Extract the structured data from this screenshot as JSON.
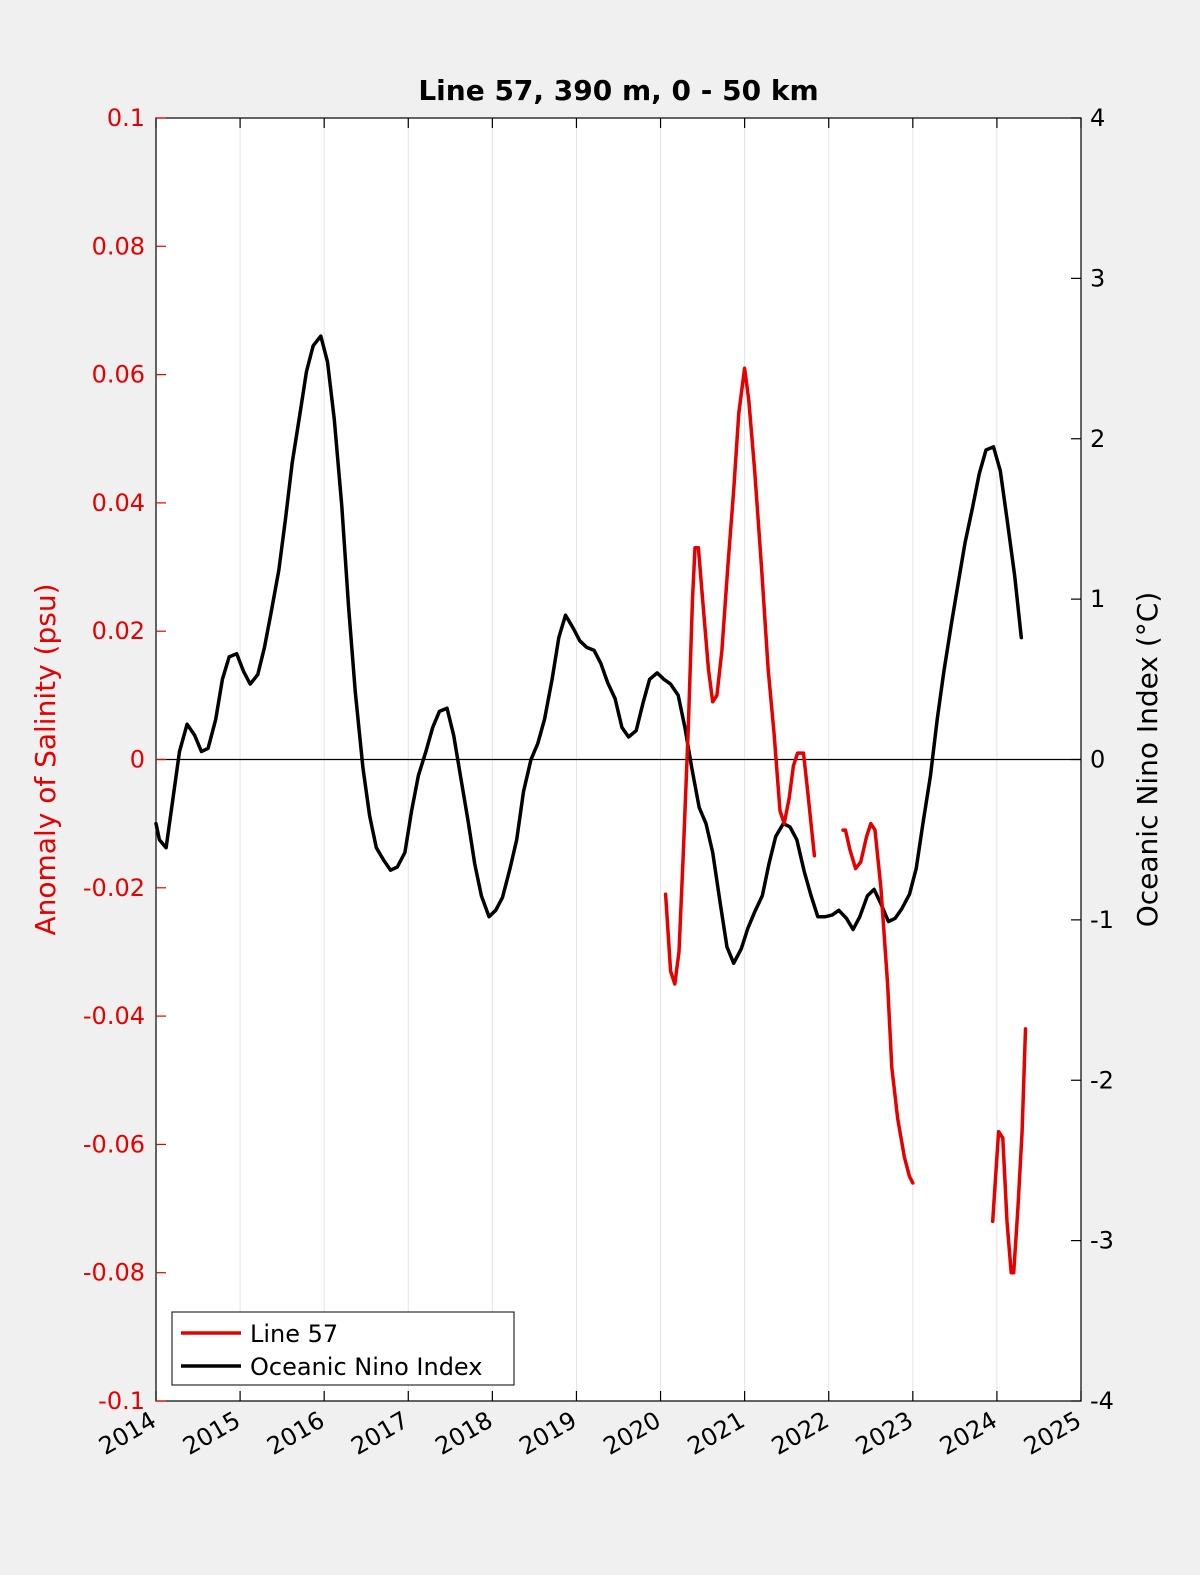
{
  "chart_data": {
    "type": "line",
    "title": "Line 57, 390 m, 0 - 50 km",
    "xlabel": "",
    "ylabel": "Anomaly of Salinity (psu)",
    "y2label": "Oceanic Nino Index (°C)",
    "xlim": [
      2014,
      2025
    ],
    "ylim": [
      -0.1,
      0.1
    ],
    "y2lim": [
      -4,
      4
    ],
    "grid": "vertical",
    "legend_position": "bottom-left",
    "x_ticks": [
      "2014",
      "2015",
      "2016",
      "2017",
      "2018",
      "2019",
      "2020",
      "2021",
      "2022",
      "2023",
      "2024",
      "2025"
    ],
    "y_ticks": [
      "0.1",
      "0.08",
      "0.06",
      "0.04",
      "0.02",
      "0",
      "-0.02",
      "-0.04",
      "-0.06",
      "-0.08",
      "-0.1"
    ],
    "y2_ticks": [
      "4",
      "3",
      "2",
      "1",
      "0",
      "-1",
      "-2",
      "-3",
      "-4"
    ],
    "colors": {
      "salinity": "#e60000",
      "oni": "#000000",
      "left_axis": "#e60000",
      "right_axis": "#000000"
    },
    "series": [
      {
        "name": "Line 57",
        "axis": "left",
        "segments": [
          [
            [
              2020.06,
              -0.021
            ],
            [
              2020.12,
              -0.033
            ],
            [
              2020.17,
              -0.035
            ],
            [
              2020.22,
              -0.03
            ],
            [
              2020.27,
              -0.015
            ],
            [
              2020.33,
              0.005
            ],
            [
              2020.38,
              0.025
            ],
            [
              2020.41,
              0.033
            ],
            [
              2020.45,
              0.033
            ],
            [
              2020.5,
              0.025
            ],
            [
              2020.57,
              0.014
            ],
            [
              2020.62,
              0.009
            ],
            [
              2020.67,
              0.01
            ],
            [
              2020.73,
              0.017
            ],
            [
              2020.8,
              0.03
            ],
            [
              2020.87,
              0.042
            ],
            [
              2020.93,
              0.054
            ],
            [
              2021.0,
              0.061
            ],
            [
              2021.05,
              0.056
            ],
            [
              2021.12,
              0.045
            ],
            [
              2021.2,
              0.03
            ],
            [
              2021.28,
              0.014
            ],
            [
              2021.35,
              0.004
            ],
            [
              2021.42,
              -0.008
            ],
            [
              2021.47,
              -0.01
            ],
            [
              2021.53,
              -0.006
            ],
            [
              2021.58,
              -0.001
            ],
            [
              2021.63,
              0.001
            ],
            [
              2021.7,
              0.001
            ],
            [
              2021.75,
              -0.005
            ],
            [
              2021.83,
              -0.015
            ]
          ],
          [
            [
              2022.17,
              -0.011
            ],
            [
              2022.2,
              -0.011
            ],
            [
              2022.25,
              -0.014
            ],
            [
              2022.32,
              -0.017
            ],
            [
              2022.38,
              -0.016
            ],
            [
              2022.45,
              -0.012
            ],
            [
              2022.5,
              -0.01
            ],
            [
              2022.55,
              -0.011
            ],
            [
              2022.62,
              -0.02
            ],
            [
              2022.7,
              -0.035
            ],
            [
              2022.75,
              -0.048
            ],
            [
              2022.82,
              -0.056
            ],
            [
              2022.9,
              -0.062
            ],
            [
              2022.96,
              -0.065
            ],
            [
              2023.0,
              -0.066
            ]
          ],
          [
            [
              2023.95,
              -0.072
            ],
            [
              2023.98,
              -0.066
            ],
            [
              2024.02,
              -0.058
            ],
            [
              2024.07,
              -0.059
            ],
            [
              2024.12,
              -0.072
            ],
            [
              2024.17,
              -0.08
            ],
            [
              2024.2,
              -0.08
            ],
            [
              2024.25,
              -0.07
            ],
            [
              2024.3,
              -0.058
            ],
            [
              2024.34,
              -0.042
            ]
          ]
        ]
      },
      {
        "name": "Oceanic Nino Index",
        "axis": "right",
        "points": [
          [
            2014.0,
            -0.4
          ],
          [
            2014.04,
            -0.5
          ],
          [
            2014.12,
            -0.55
          ],
          [
            2014.2,
            -0.25
          ],
          [
            2014.28,
            0.05
          ],
          [
            2014.37,
            0.22
          ],
          [
            2014.46,
            0.15
          ],
          [
            2014.54,
            0.05
          ],
          [
            2014.62,
            0.07
          ],
          [
            2014.71,
            0.25
          ],
          [
            2014.79,
            0.5
          ],
          [
            2014.87,
            0.64
          ],
          [
            2014.96,
            0.66
          ],
          [
            2015.04,
            0.55
          ],
          [
            2015.12,
            0.47
          ],
          [
            2015.21,
            0.53
          ],
          [
            2015.29,
            0.7
          ],
          [
            2015.37,
            0.92
          ],
          [
            2015.46,
            1.18
          ],
          [
            2015.54,
            1.5
          ],
          [
            2015.62,
            1.85
          ],
          [
            2015.71,
            2.15
          ],
          [
            2015.79,
            2.42
          ],
          [
            2015.87,
            2.58
          ],
          [
            2015.96,
            2.64
          ],
          [
            2016.04,
            2.48
          ],
          [
            2016.12,
            2.12
          ],
          [
            2016.21,
            1.58
          ],
          [
            2016.29,
            0.95
          ],
          [
            2016.37,
            0.42
          ],
          [
            2016.46,
            -0.05
          ],
          [
            2016.54,
            -0.35
          ],
          [
            2016.62,
            -0.55
          ],
          [
            2016.71,
            -0.63
          ],
          [
            2016.79,
            -0.69
          ],
          [
            2016.87,
            -0.67
          ],
          [
            2016.96,
            -0.58
          ],
          [
            2017.04,
            -0.32
          ],
          [
            2017.12,
            -0.1
          ],
          [
            2017.21,
            0.05
          ],
          [
            2017.29,
            0.2
          ],
          [
            2017.37,
            0.3
          ],
          [
            2017.46,
            0.32
          ],
          [
            2017.54,
            0.15
          ],
          [
            2017.62,
            -0.1
          ],
          [
            2017.71,
            -0.38
          ],
          [
            2017.79,
            -0.65
          ],
          [
            2017.87,
            -0.85
          ],
          [
            2017.96,
            -0.98
          ],
          [
            2018.04,
            -0.94
          ],
          [
            2018.12,
            -0.86
          ],
          [
            2018.21,
            -0.68
          ],
          [
            2018.29,
            -0.5
          ],
          [
            2018.37,
            -0.2
          ],
          [
            2018.46,
            0.0
          ],
          [
            2018.54,
            0.1
          ],
          [
            2018.62,
            0.25
          ],
          [
            2018.71,
            0.5
          ],
          [
            2018.79,
            0.76
          ],
          [
            2018.87,
            0.9
          ],
          [
            2018.96,
            0.82
          ],
          [
            2019.04,
            0.74
          ],
          [
            2019.12,
            0.7
          ],
          [
            2019.21,
            0.68
          ],
          [
            2019.29,
            0.6
          ],
          [
            2019.37,
            0.48
          ],
          [
            2019.46,
            0.38
          ],
          [
            2019.54,
            0.2
          ],
          [
            2019.62,
            0.14
          ],
          [
            2019.71,
            0.18
          ],
          [
            2019.79,
            0.35
          ],
          [
            2019.87,
            0.5
          ],
          [
            2019.96,
            0.54
          ],
          [
            2020.04,
            0.5
          ],
          [
            2020.12,
            0.47
          ],
          [
            2020.21,
            0.4
          ],
          [
            2020.29,
            0.2
          ],
          [
            2020.37,
            -0.05
          ],
          [
            2020.46,
            -0.3
          ],
          [
            2020.54,
            -0.4
          ],
          [
            2020.62,
            -0.58
          ],
          [
            2020.71,
            -0.9
          ],
          [
            2020.79,
            -1.17
          ],
          [
            2020.87,
            -1.27
          ],
          [
            2020.96,
            -1.18
          ],
          [
            2021.04,
            -1.05
          ],
          [
            2021.12,
            -0.95
          ],
          [
            2021.21,
            -0.85
          ],
          [
            2021.29,
            -0.65
          ],
          [
            2021.37,
            -0.48
          ],
          [
            2021.46,
            -0.4
          ],
          [
            2021.54,
            -0.42
          ],
          [
            2021.62,
            -0.5
          ],
          [
            2021.71,
            -0.7
          ],
          [
            2021.79,
            -0.85
          ],
          [
            2021.87,
            -0.98
          ],
          [
            2021.96,
            -0.98
          ],
          [
            2022.04,
            -0.97
          ],
          [
            2022.12,
            -0.94
          ],
          [
            2022.21,
            -0.99
          ],
          [
            2022.29,
            -1.06
          ],
          [
            2022.37,
            -0.98
          ],
          [
            2022.46,
            -0.85
          ],
          [
            2022.54,
            -0.81
          ],
          [
            2022.62,
            -0.9
          ],
          [
            2022.71,
            -1.01
          ],
          [
            2022.79,
            -0.99
          ],
          [
            2022.87,
            -0.93
          ],
          [
            2022.96,
            -0.84
          ],
          [
            2023.04,
            -0.68
          ],
          [
            2023.12,
            -0.4
          ],
          [
            2023.21,
            -0.1
          ],
          [
            2023.29,
            0.25
          ],
          [
            2023.37,
            0.55
          ],
          [
            2023.46,
            0.85
          ],
          [
            2023.54,
            1.1
          ],
          [
            2023.62,
            1.35
          ],
          [
            2023.71,
            1.57
          ],
          [
            2023.79,
            1.78
          ],
          [
            2023.87,
            1.93
          ],
          [
            2023.96,
            1.95
          ],
          [
            2024.04,
            1.8
          ],
          [
            2024.12,
            1.5
          ],
          [
            2024.21,
            1.15
          ],
          [
            2024.29,
            0.76
          ]
        ]
      }
    ]
  }
}
